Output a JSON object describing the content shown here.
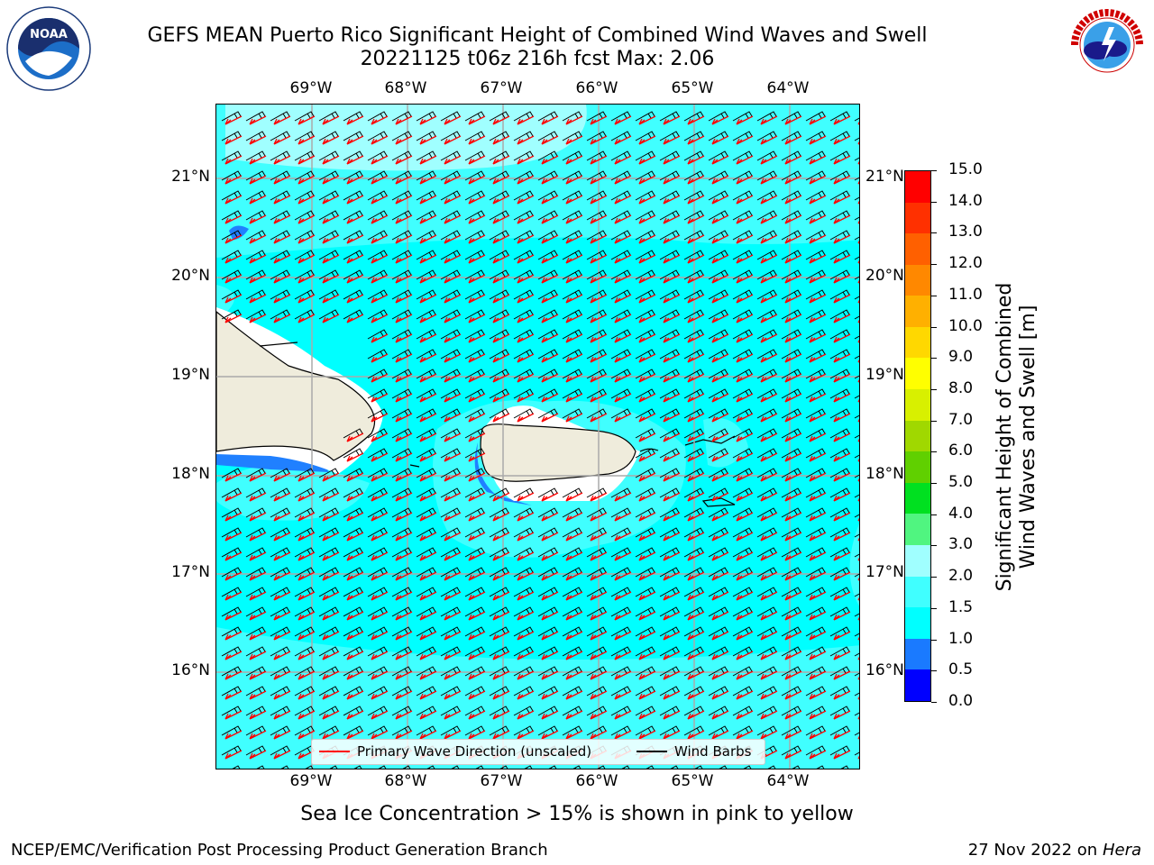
{
  "title": {
    "line1": "GEFS MEAN Puerto Rico Significant Height of Combined Wind Waves and Swell",
    "line2": "20221125 t06z 216h fcst   Max: 2.06"
  },
  "map": {
    "lon_labels": [
      "69°W",
      "68°W",
      "67°W",
      "66°W",
      "65°W",
      "64°W"
    ],
    "lat_labels": [
      "21°N",
      "20°N",
      "19°N",
      "18°N",
      "17°N",
      "16°N"
    ],
    "colors": {
      "background_sea": "#00ffff",
      "swell_1_5": "#40ffff",
      "swell_2_0": "#a0ffff",
      "low_wave": "#2080ff",
      "land": "#efecdc",
      "wave_arrow": "#ff0000",
      "wind_barb": "#000000"
    }
  },
  "legend": {
    "wave_label": "Primary Wave Direction (unscaled)",
    "barb_label": "Wind Barbs"
  },
  "colorbar": {
    "label_line1": "Significant Height of Combined",
    "label_line2": "Wind Waves and Swell [m]",
    "ticks": [
      "0.0",
      "0.5",
      "1.0",
      "1.5",
      "2.0",
      "3.0",
      "4.0",
      "5.0",
      "6.0",
      "7.0",
      "8.0",
      "9.0",
      "10.0",
      "11.0",
      "12.0",
      "13.0",
      "14.0",
      "15.0"
    ],
    "colors": [
      "#0000ff",
      "#1a7aff",
      "#00ffff",
      "#40ffff",
      "#a0ffff",
      "#50f580",
      "#00e020",
      "#60d000",
      "#a0d800",
      "#d8f000",
      "#ffff00",
      "#ffd800",
      "#ffb000",
      "#ff8800",
      "#ff6000",
      "#ff3000",
      "#ff0000"
    ]
  },
  "sea_ice_note": "Sea Ice Concentration > 15% is shown in pink to yellow",
  "footer": {
    "left": "NCEP/EMC/Verification Post Processing Product Generation Branch",
    "right_date": "27 Nov 2022 on",
    "right_machine": "Hera"
  },
  "logos": {
    "noaa": "NOAA",
    "nws": "NATIONAL WEATHER SERVICE"
  }
}
